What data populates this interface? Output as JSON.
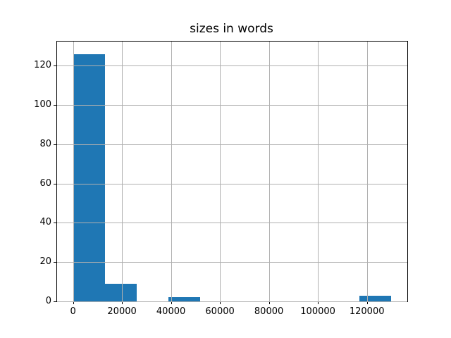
{
  "chart_data": {
    "type": "bar",
    "chart_kind": "histogram",
    "title": "sizes in words",
    "xlabel": "",
    "ylabel": "",
    "bin_edges": [
      0,
      13000,
      26000,
      39000,
      52000,
      65000,
      78000,
      91000,
      104000,
      117000,
      130000
    ],
    "counts": [
      126,
      9,
      0,
      2,
      0,
      0,
      0,
      0,
      0,
      3
    ],
    "xticks": [
      0,
      20000,
      40000,
      60000,
      80000,
      100000,
      120000
    ],
    "xtick_labels": [
      "0",
      "20000",
      "40000",
      "60000",
      "80000",
      "100000",
      "120000"
    ],
    "yticks": [
      0,
      20,
      40,
      60,
      80,
      100,
      120
    ],
    "ytick_labels": [
      "0",
      "20",
      "40",
      "60",
      "80",
      "100",
      "120"
    ],
    "xlim": [
      -6500,
      136500
    ],
    "ylim": [
      0,
      132.3
    ],
    "grid": true,
    "grid_above_bars": true,
    "legend_position": "none",
    "bar_color": "#1f77b4",
    "grid_color": "#b0b0b0",
    "spine_color": "#000000",
    "text_color": "#000000",
    "background_color": "#ffffff"
  }
}
